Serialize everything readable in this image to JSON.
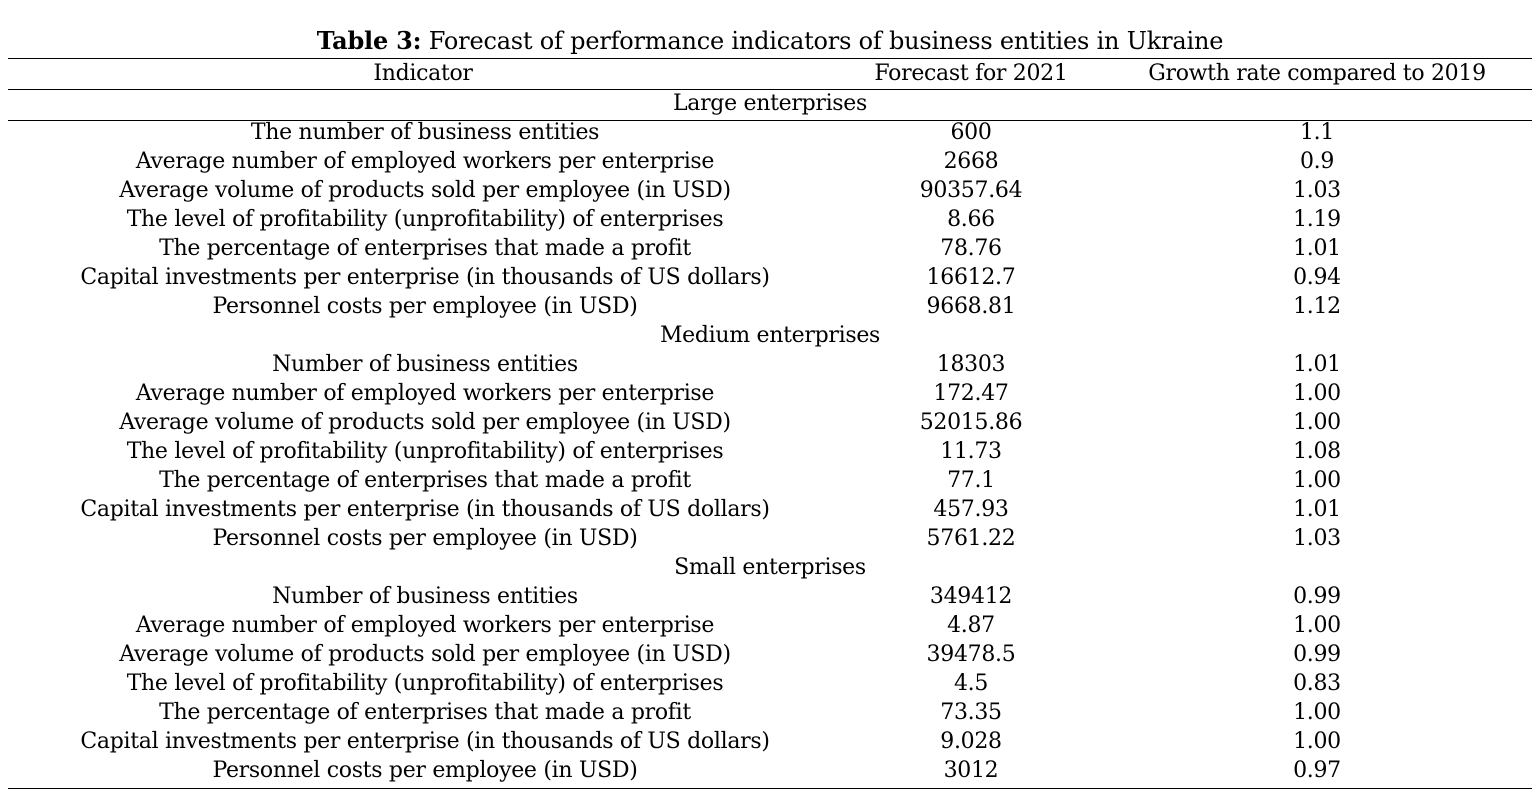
{
  "table": {
    "caption_label": "Table 3:",
    "caption_text": " Forecast of performance indicators of business entities in Ukraine",
    "headers": [
      "Indicator",
      "Forecast for 2021",
      "Growth rate compared to 2019"
    ],
    "sections": [
      {
        "title": "Large enterprises",
        "rows": [
          [
            "The number of business entities",
            "600",
            "1.1"
          ],
          [
            "Average number of employed workers per enterprise",
            "2668",
            "0.9"
          ],
          [
            "Average volume of products sold per employee (in USD)",
            "90357.64",
            "1.03"
          ],
          [
            "The level of profitability (unprofitability) of enterprises",
            "8.66",
            "1.19"
          ],
          [
            "The percentage of enterprises that made a profit",
            "78.76",
            "1.01"
          ],
          [
            "Capital investments per enterprise (in thousands of US dollars)",
            "16612.7",
            "0.94"
          ],
          [
            "Personnel costs per employee (in USD)",
            "9668.81",
            "1.12"
          ]
        ]
      },
      {
        "title": "Medium enterprises",
        "rows": [
          [
            "Number of business entities",
            "18303",
            "1.01"
          ],
          [
            "Average number of employed workers per enterprise",
            "172.47",
            "1.00"
          ],
          [
            "Average volume of products sold per employee (in USD)",
            "52015.86",
            "1.00"
          ],
          [
            "The level of profitability (unprofitability) of enterprises",
            "11.73",
            "1.08"
          ],
          [
            "The percentage of enterprises that made a profit",
            "77.1",
            "1.00"
          ],
          [
            "Capital investments per enterprise (in thousands of US dollars)",
            "457.93",
            "1.01"
          ],
          [
            "Personnel costs per employee (in USD)",
            "5761.22",
            "1.03"
          ]
        ]
      },
      {
        "title": "Small enterprises",
        "rows": [
          [
            "Number of business entities",
            "349412",
            "0.99"
          ],
          [
            "Average number of employed workers per enterprise",
            "4.87",
            "1.00"
          ],
          [
            "Average volume of products sold per employee (in USD)",
            "39478.5",
            "0.99"
          ],
          [
            "The level of profitability (unprofitability) of enterprises",
            "4.5",
            "0.83"
          ],
          [
            "The percentage of enterprises that made a profit",
            "73.35",
            "1.00"
          ],
          [
            "Capital investments per enterprise (in thousands of US dollars)",
            "9.028",
            "1.00"
          ],
          [
            "Personnel costs per employee (in USD)",
            "3012",
            "0.97"
          ]
        ]
      }
    ]
  }
}
